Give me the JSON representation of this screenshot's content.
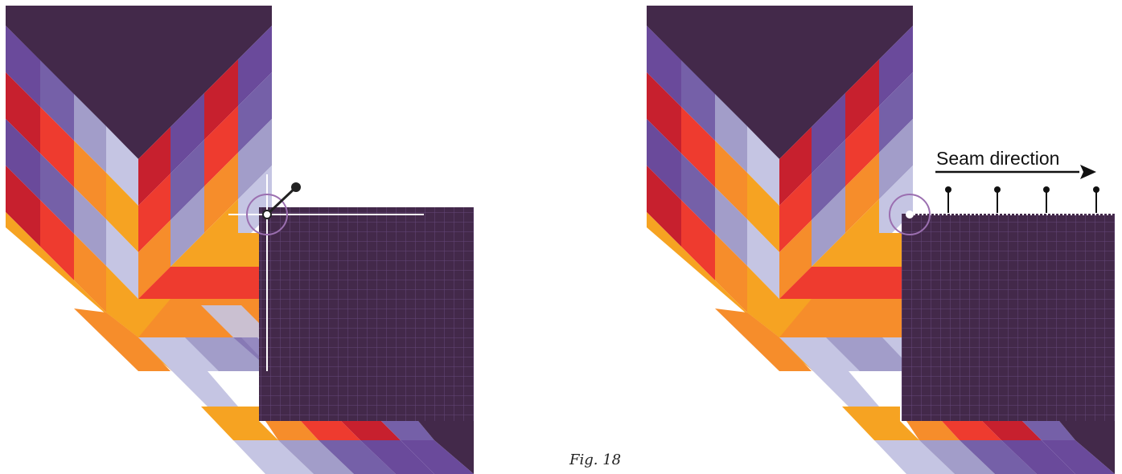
{
  "caption": "Fig. 18",
  "seam_label": "Seam direction",
  "colors": {
    "dark": "#43294a",
    "purple": "#6a4a9b",
    "violet": "#7560a8",
    "lavender": "#a29dc9",
    "pale": "#c5c5e3",
    "crimson": "#c7202e",
    "red": "#ee3b2f",
    "orange": "#f68d2b",
    "amber": "#f6a322",
    "grid_fill": "#43294a",
    "grid_line": "#6a4d79",
    "marker_circle": "#9b6fb0"
  }
}
